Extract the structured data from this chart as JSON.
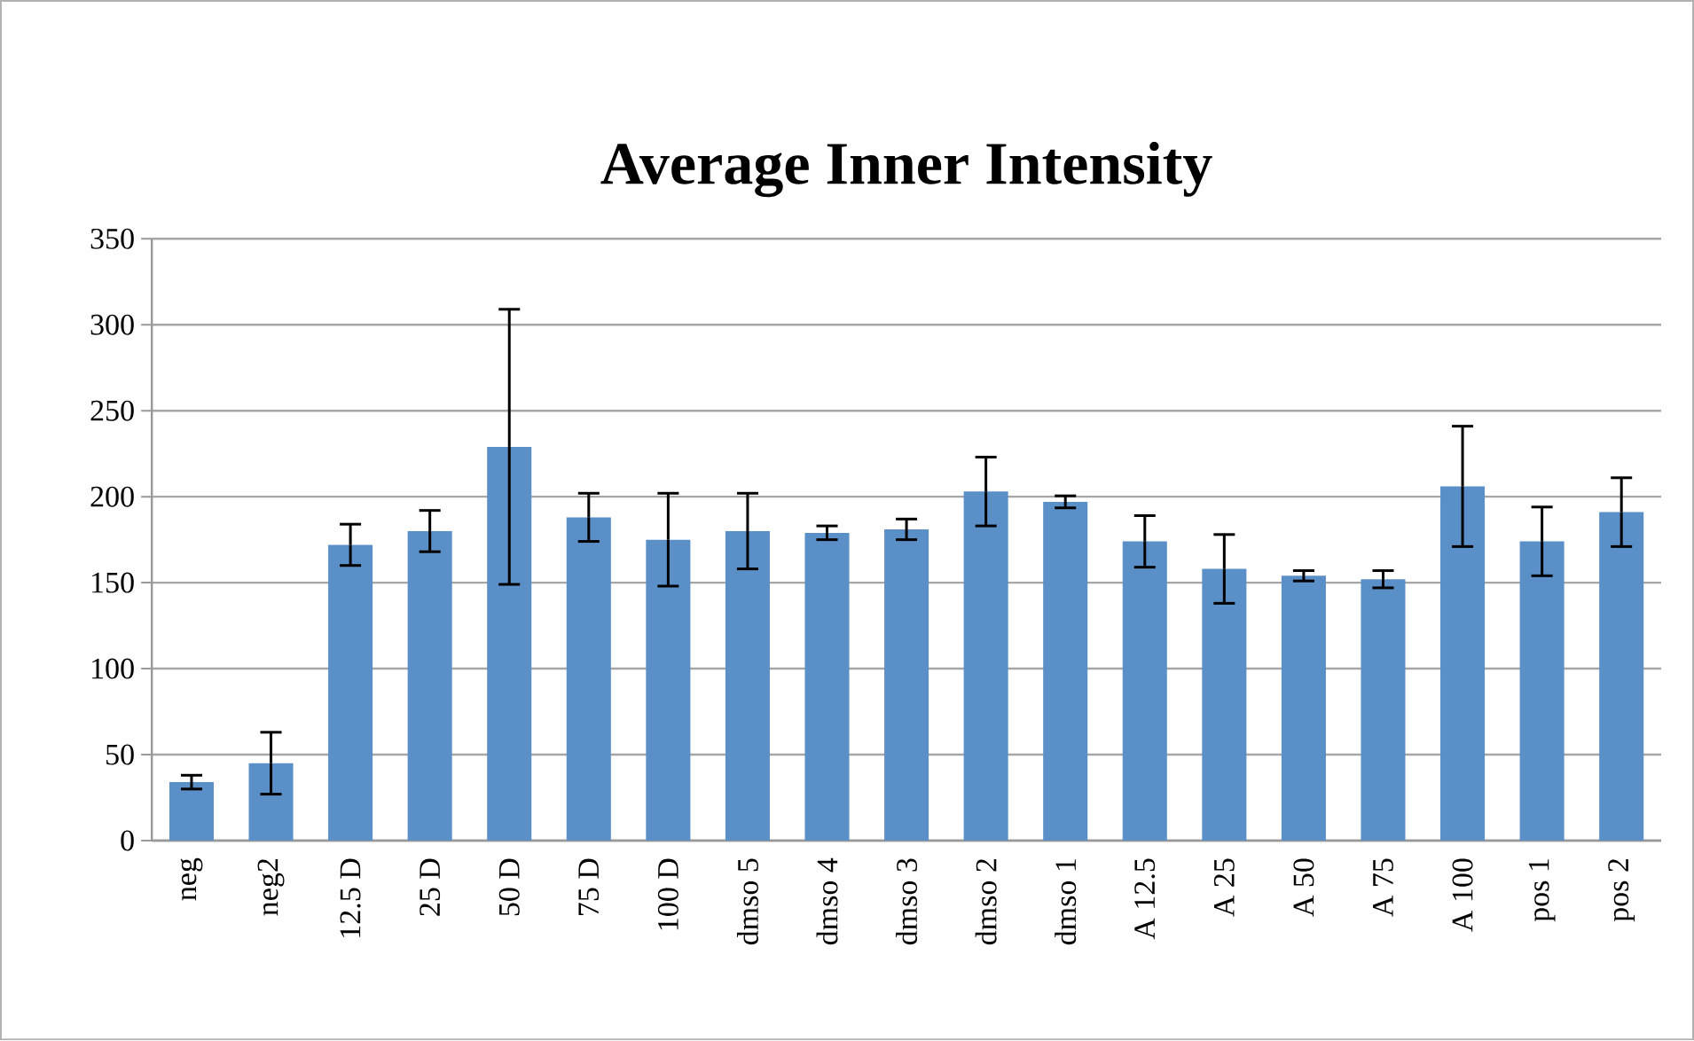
{
  "chart_data": {
    "type": "bar",
    "title": "Average Inner Intensity",
    "categories": [
      "neg",
      "neg2",
      "12.5 D",
      "25 D",
      "50 D",
      "75 D",
      "100 D",
      "dmso 5",
      "dmso 4",
      "dmso 3",
      "dmso 2",
      "dmso 1",
      "A 12.5",
      "A 25",
      "A 50",
      "A 75",
      "A 100",
      "pos 1",
      "pos 2"
    ],
    "values": [
      34,
      45,
      172,
      180,
      229,
      188,
      175,
      180,
      179,
      181,
      203,
      197,
      174,
      158,
      154,
      152,
      206,
      174,
      191
    ],
    "errors": [
      4,
      18,
      12,
      12,
      80,
      14,
      27,
      22,
      4,
      6,
      20,
      3.5,
      15,
      20,
      3,
      5,
      35,
      20,
      20
    ],
    "color": "#5b8fc7",
    "ylim": [
      0,
      350
    ],
    "yticks": [
      0,
      50,
      100,
      150,
      200,
      250,
      300,
      350
    ],
    "grid": "y"
  }
}
